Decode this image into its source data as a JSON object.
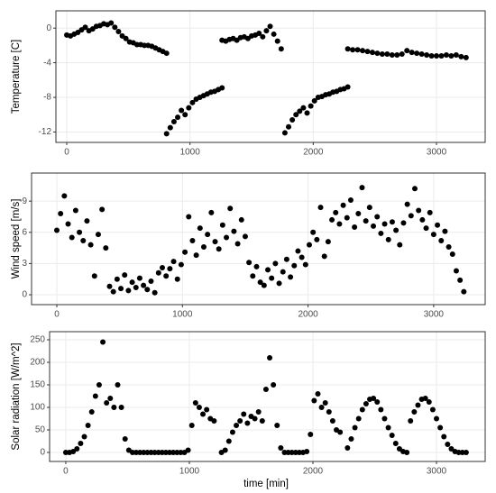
{
  "chart_data": [
    {
      "type": "scatter",
      "ylabel": "Temperature  [C]",
      "x": [
        0,
        30,
        60,
        90,
        120,
        150,
        180,
        210,
        240,
        270,
        300,
        330,
        360,
        390,
        420,
        450,
        480,
        510,
        540,
        570,
        600,
        630,
        660,
        690,
        720,
        750,
        780,
        810,
        810,
        840,
        870,
        900,
        930,
        960,
        990,
        1020,
        1050,
        1080,
        1110,
        1140,
        1170,
        1200,
        1230,
        1260,
        1260,
        1290,
        1320,
        1350,
        1380,
        1410,
        1440,
        1470,
        1500,
        1530,
        1560,
        1590,
        1620,
        1650,
        1680,
        1710,
        1740,
        1770,
        1800,
        1830,
        1860,
        1890,
        1920,
        1950,
        1980,
        2010,
        2040,
        2070,
        2100,
        2130,
        2160,
        2190,
        2220,
        2250,
        2280,
        2280,
        2320,
        2360,
        2400,
        2440,
        2480,
        2520,
        2560,
        2600,
        2640,
        2680,
        2720,
        2760,
        2800,
        2840,
        2880,
        2920,
        2960,
        3000,
        3040,
        3080,
        3120,
        3160,
        3200,
        3240
      ],
      "y": [
        -0.8,
        -0.9,
        -0.7,
        -0.5,
        -0.2,
        0.1,
        -0.3,
        -0.1,
        0.2,
        0.3,
        0.5,
        0.4,
        0.6,
        0.1,
        -0.4,
        -0.9,
        -1.2,
        -1.6,
        -1.7,
        -1.9,
        -1.9,
        -2.0,
        -2.0,
        -2.1,
        -2.3,
        -2.5,
        -2.7,
        -2.9,
        -12.2,
        -11.5,
        -10.8,
        -10.3,
        -9.5,
        -10.0,
        -9.2,
        -8.6,
        -8.2,
        -8.0,
        -7.8,
        -7.6,
        -7.4,
        -7.3,
        -7.1,
        -6.9,
        -1.4,
        -1.5,
        -1.3,
        -1.2,
        -1.4,
        -1.1,
        -1.0,
        -1.2,
        -0.9,
        -0.8,
        -0.6,
        -1.0,
        -0.3,
        0.2,
        -0.7,
        -1.5,
        -2.4,
        -12.1,
        -11.4,
        -10.6,
        -10.0,
        -9.6,
        -9.2,
        -9.8,
        -9.0,
        -8.4,
        -8.0,
        -7.9,
        -7.7,
        -7.6,
        -7.4,
        -7.3,
        -7.1,
        -7.0,
        -6.8,
        -2.4,
        -2.5,
        -2.5,
        -2.6,
        -2.7,
        -2.8,
        -2.9,
        -3.0,
        -3.0,
        -3.1,
        -3.1,
        -3.0,
        -2.6,
        -2.8,
        -2.9,
        -3.0,
        -3.1,
        -3.2,
        -3.2,
        -3.2,
        -3.1,
        -3.2,
        -3.1,
        -3.3,
        -3.4
      ],
      "color": "#000000",
      "grid": true,
      "xlim": [
        -88,
        3395
      ],
      "xticks": [
        0,
        1000,
        2000,
        3000
      ],
      "ylim": [
        -13.2,
        2
      ],
      "yticks": [
        -12,
        -8,
        -4,
        0
      ]
    },
    {
      "type": "scatter",
      "ylabel": "Wind speed [m/s]",
      "x": [
        0,
        30,
        60,
        90,
        120,
        150,
        180,
        210,
        240,
        270,
        300,
        330,
        360,
        390,
        420,
        450,
        480,
        510,
        540,
        570,
        600,
        630,
        660,
        690,
        720,
        750,
        780,
        810,
        840,
        870,
        900,
        930,
        960,
        990,
        1020,
        1050,
        1080,
        1110,
        1140,
        1170,
        1200,
        1230,
        1260,
        1290,
        1320,
        1350,
        1380,
        1410,
        1440,
        1470,
        1500,
        1530,
        1560,
        1590,
        1620,
        1650,
        1680,
        1710,
        1740,
        1770,
        1800,
        1830,
        1860,
        1890,
        1920,
        1950,
        1980,
        2010,
        2040,
        2070,
        2100,
        2130,
        2160,
        2190,
        2220,
        2250,
        2280,
        2310,
        2340,
        2370,
        2400,
        2430,
        2460,
        2490,
        2520,
        2550,
        2580,
        2610,
        2640,
        2670,
        2700,
        2730,
        2760,
        2790,
        2820,
        2850,
        2880,
        2910,
        2940,
        2970,
        3000,
        3030,
        3060,
        3090,
        3120,
        3150,
        3180,
        3210,
        3240
      ],
      "y": [
        6.2,
        7.8,
        9.5,
        6.8,
        5.5,
        8.1,
        6.0,
        5.2,
        7.1,
        4.8,
        1.8,
        5.8,
        8.2,
        4.5,
        0.8,
        0.3,
        1.5,
        0.6,
        1.9,
        0.4,
        1.2,
        0.7,
        1.6,
        0.9,
        0.5,
        1.3,
        0.2,
        2.1,
        2.6,
        1.8,
        2.5,
        3.2,
        1.5,
        2.9,
        4.1,
        7.5,
        5.2,
        3.8,
        6.4,
        4.6,
        5.8,
        7.9,
        5.1,
        4.4,
        6.7,
        5.5,
        8.3,
        6.1,
        4.9,
        7.2,
        5.6,
        3.1,
        1.8,
        2.7,
        1.2,
        0.9,
        2.4,
        1.6,
        3.0,
        1.1,
        2.2,
        3.4,
        1.7,
        2.8,
        4.2,
        3.6,
        2.9,
        4.8,
        6.0,
        5.3,
        8.4,
        3.7,
        5.1,
        7.2,
        7.9,
        6.8,
        8.6,
        7.4,
        9.1,
        6.5,
        7.8,
        10.3,
        7.1,
        8.4,
        6.6,
        7.5,
        5.9,
        6.8,
        5.3,
        7.0,
        6.2,
        4.8,
        6.9,
        8.7,
        7.6,
        10.2,
        8.1,
        7.2,
        6.4,
        7.9,
        5.8,
        6.7,
        5.2,
        6.1,
        4.6,
        3.9,
        2.3,
        1.4,
        0.3
      ],
      "color": "#000000",
      "grid": true,
      "xlim": [
        -201,
        3410
      ],
      "xticks": [
        0,
        1000,
        2000,
        3000
      ],
      "ylim": [
        -0.95,
        11.7
      ],
      "yticks": [
        0,
        3,
        6,
        9
      ]
    },
    {
      "type": "scatter",
      "ylabel": "Solar radiation  [W/m^2]",
      "xlabel": "time [min]",
      "x": [
        0,
        30,
        60,
        90,
        120,
        150,
        180,
        210,
        240,
        270,
        300,
        330,
        360,
        390,
        420,
        450,
        480,
        510,
        540,
        570,
        600,
        630,
        660,
        690,
        720,
        750,
        780,
        810,
        840,
        870,
        900,
        930,
        960,
        990,
        1020,
        1050,
        1080,
        1110,
        1140,
        1170,
        1200,
        1260,
        1290,
        1320,
        1350,
        1380,
        1410,
        1440,
        1470,
        1500,
        1530,
        1560,
        1590,
        1620,
        1650,
        1680,
        1710,
        1740,
        1770,
        1800,
        1830,
        1860,
        1890,
        1920,
        1950,
        1980,
        2010,
        2040,
        2070,
        2100,
        2130,
        2160,
        2190,
        2220,
        2280,
        2310,
        2340,
        2370,
        2400,
        2430,
        2460,
        2490,
        2520,
        2550,
        2580,
        2610,
        2640,
        2670,
        2700,
        2730,
        2760,
        2790,
        2820,
        2850,
        2880,
        2910,
        2940,
        2970,
        3000,
        3030,
        3060,
        3090,
        3120,
        3150,
        3180,
        3210,
        3240
      ],
      "y": [
        0,
        0,
        2,
        8,
        20,
        35,
        60,
        90,
        125,
        150,
        245,
        110,
        120,
        100,
        150,
        100,
        30,
        5,
        0,
        0,
        0,
        0,
        0,
        0,
        0,
        0,
        0,
        0,
        0,
        0,
        0,
        0,
        0,
        5,
        60,
        110,
        100,
        85,
        95,
        75,
        70,
        0,
        5,
        25,
        45,
        60,
        70,
        85,
        65,
        80,
        75,
        90,
        70,
        140,
        210,
        150,
        60,
        10,
        0,
        0,
        0,
        0,
        0,
        0,
        2,
        40,
        115,
        130,
        100,
        110,
        90,
        70,
        50,
        45,
        10,
        30,
        55,
        75,
        95,
        108,
        118,
        120,
        112,
        95,
        75,
        55,
        38,
        20,
        8,
        2,
        0,
        70,
        90,
        105,
        118,
        120,
        112,
        95,
        75,
        55,
        35,
        18,
        8,
        2,
        0,
        0,
        0
      ],
      "color": "#000000",
      "grid": true,
      "xlim": [
        -131,
        3394
      ],
      "xticks": [
        0,
        1000,
        2000,
        3000
      ],
      "ylim": [
        -20,
        268
      ],
      "yticks": [
        0,
        50,
        100,
        150,
        200,
        250
      ]
    }
  ]
}
